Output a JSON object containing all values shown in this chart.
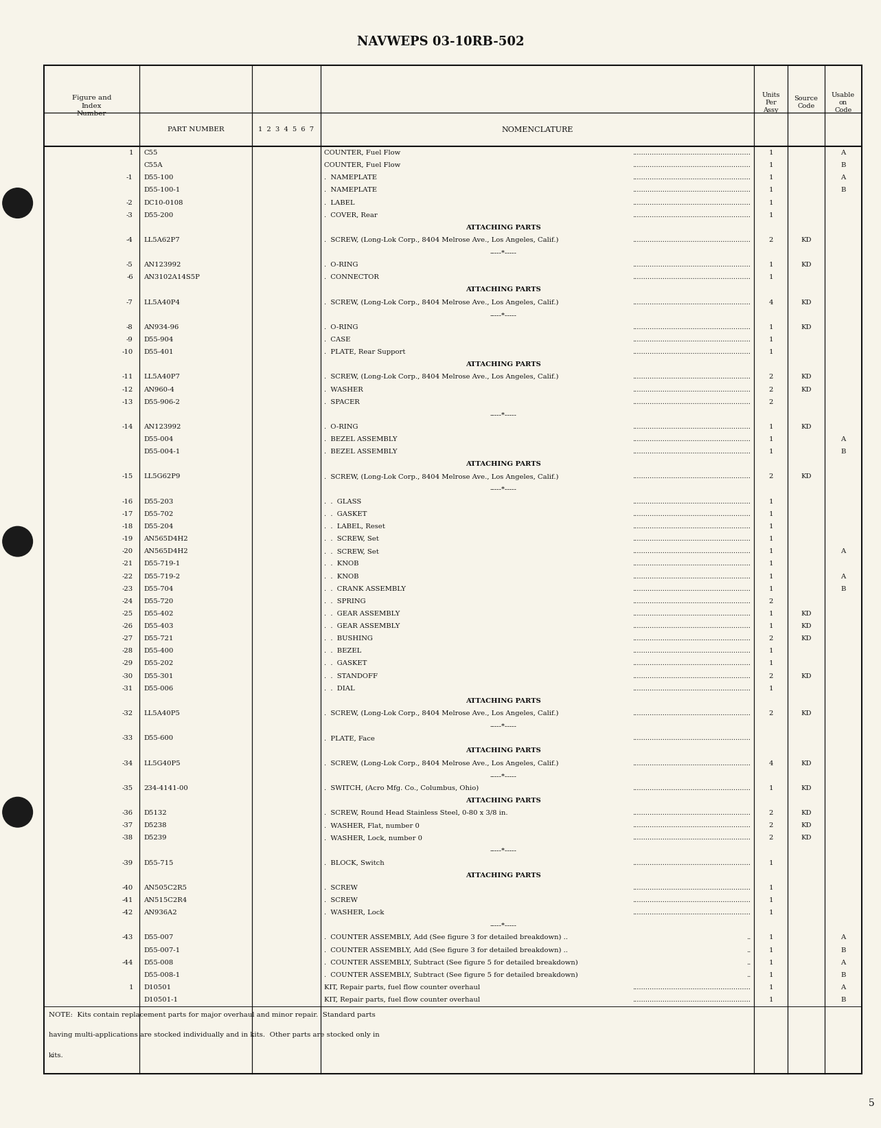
{
  "title": "NAVWEPS 03-10RB-502",
  "page_number": "5",
  "bg_color": "#f7f4ea",
  "rows": [
    {
      "fig": "1",
      "part": "C55",
      "indent": 0,
      "nom": "COUNTER, Fuel Flow",
      "units": "1",
      "source": "",
      "usable": "A",
      "type": "data"
    },
    {
      "fig": "",
      "part": "C55A",
      "indent": 0,
      "nom": "COUNTER, Fuel Flow",
      "units": "1",
      "source": "",
      "usable": "B",
      "type": "data"
    },
    {
      "fig": "-1",
      "part": "D55-100",
      "indent": 1,
      "nom": "NAMEPLATE",
      "units": "1",
      "source": "",
      "usable": "A",
      "type": "data"
    },
    {
      "fig": "",
      "part": "D55-100-1",
      "indent": 1,
      "nom": "NAMEPLATE",
      "units": "1",
      "source": "",
      "usable": "B",
      "type": "data"
    },
    {
      "fig": "-2",
      "part": "DC10-0108",
      "indent": 1,
      "nom": "LABEL",
      "units": "1",
      "source": "",
      "usable": "",
      "type": "data"
    },
    {
      "fig": "-3",
      "part": "D55-200",
      "indent": 1,
      "nom": "COVER, Rear",
      "units": "1",
      "source": "",
      "usable": "",
      "type": "data"
    },
    {
      "fig": "",
      "part": "",
      "indent": 0,
      "nom": "ATTACHING PARTS",
      "units": "",
      "source": "",
      "usable": "",
      "type": "attaching"
    },
    {
      "fig": "-4",
      "part": "LL5A62P7",
      "indent": 1,
      "nom": "SCREW, (Long-Lok Corp., 8404 Melrose Ave., Los Angeles, Calif.)",
      "units": "2",
      "source": "KD",
      "usable": "",
      "type": "data"
    },
    {
      "fig": "",
      "part": "",
      "indent": 0,
      "nom": "",
      "units": "",
      "source": "",
      "usable": "",
      "type": "separator"
    },
    {
      "fig": "-5",
      "part": "AN123992",
      "indent": 1,
      "nom": "O-RING",
      "units": "1",
      "source": "KD",
      "usable": "",
      "type": "data"
    },
    {
      "fig": "-6",
      "part": "AN3102A14S5P",
      "indent": 1,
      "nom": "CONNECTOR",
      "units": "1",
      "source": "",
      "usable": "",
      "type": "data"
    },
    {
      "fig": "",
      "part": "",
      "indent": 0,
      "nom": "ATTACHING PARTS",
      "units": "",
      "source": "",
      "usable": "",
      "type": "attaching"
    },
    {
      "fig": "-7",
      "part": "LL5A40P4",
      "indent": 1,
      "nom": "SCREW, (Long-Lok Corp., 8404 Melrose Ave., Los Angeles, Calif.)",
      "units": "4",
      "source": "KD",
      "usable": "",
      "type": "data"
    },
    {
      "fig": "",
      "part": "",
      "indent": 0,
      "nom": "",
      "units": "",
      "source": "",
      "usable": "",
      "type": "separator"
    },
    {
      "fig": "-8",
      "part": "AN934-96",
      "indent": 1,
      "nom": "O-RING",
      "units": "1",
      "source": "KD",
      "usable": "",
      "type": "data"
    },
    {
      "fig": "-9",
      "part": "D55-904",
      "indent": 1,
      "nom": "CASE",
      "units": "1",
      "source": "",
      "usable": "",
      "type": "data"
    },
    {
      "fig": "-10",
      "part": "D55-401",
      "indent": 1,
      "nom": "PLATE, Rear Support",
      "units": "1",
      "source": "",
      "usable": "",
      "type": "data"
    },
    {
      "fig": "",
      "part": "",
      "indent": 0,
      "nom": "ATTACHING PARTS",
      "units": "",
      "source": "",
      "usable": "",
      "type": "attaching"
    },
    {
      "fig": "-11",
      "part": "LL5A40P7",
      "indent": 1,
      "nom": "SCREW, (Long-Lok Corp., 8404 Melrose Ave., Los Angeles, Calif.)",
      "units": "2",
      "source": "KD",
      "usable": "",
      "type": "data"
    },
    {
      "fig": "-12",
      "part": "AN960-4",
      "indent": 1,
      "nom": "WASHER",
      "units": "2",
      "source": "KD",
      "usable": "",
      "type": "data"
    },
    {
      "fig": "-13",
      "part": "D55-906-2",
      "indent": 1,
      "nom": "SPACER",
      "units": "2",
      "source": "",
      "usable": "",
      "type": "data"
    },
    {
      "fig": "",
      "part": "",
      "indent": 0,
      "nom": "",
      "units": "",
      "source": "",
      "usable": "",
      "type": "separator"
    },
    {
      "fig": "-14",
      "part": "AN123992",
      "indent": 1,
      "nom": "O-RING",
      "units": "1",
      "source": "KD",
      "usable": "",
      "type": "data"
    },
    {
      "fig": "",
      "part": "D55-004",
      "indent": 1,
      "nom": "BEZEL ASSEMBLY",
      "units": "1",
      "source": "",
      "usable": "A",
      "type": "data"
    },
    {
      "fig": "",
      "part": "D55-004-1",
      "indent": 1,
      "nom": "BEZEL ASSEMBLY",
      "units": "1",
      "source": "",
      "usable": "B",
      "type": "data"
    },
    {
      "fig": "",
      "part": "",
      "indent": 0,
      "nom": "ATTACHING PARTS",
      "units": "",
      "source": "",
      "usable": "",
      "type": "attaching"
    },
    {
      "fig": "-15",
      "part": "LL5G62P9",
      "indent": 1,
      "nom": "SCREW, (Long-Lok Corp., 8404 Melrose Ave., Los Angeles, Calif.)",
      "units": "2",
      "source": "KD",
      "usable": "",
      "type": "data"
    },
    {
      "fig": "",
      "part": "",
      "indent": 0,
      "nom": "",
      "units": "",
      "source": "",
      "usable": "",
      "type": "separator"
    },
    {
      "fig": "-16",
      "part": "D55-203",
      "indent": 2,
      "nom": "GLASS",
      "units": "1",
      "source": "",
      "usable": "",
      "type": "data"
    },
    {
      "fig": "-17",
      "part": "D55-702",
      "indent": 2,
      "nom": "GASKET",
      "units": "1",
      "source": "",
      "usable": "",
      "type": "data"
    },
    {
      "fig": "-18",
      "part": "D55-204",
      "indent": 2,
      "nom": "LABEL, Reset",
      "units": "1",
      "source": "",
      "usable": "",
      "type": "data"
    },
    {
      "fig": "-19",
      "part": "AN565D4H2",
      "indent": 2,
      "nom": "SCREW, Set",
      "units": "1",
      "source": "",
      "usable": "",
      "type": "data"
    },
    {
      "fig": "-20",
      "part": "AN565D4H2",
      "indent": 2,
      "nom": "SCREW, Set",
      "units": "1",
      "source": "",
      "usable": "A",
      "type": "data"
    },
    {
      "fig": "-21",
      "part": "D55-719-1",
      "indent": 2,
      "nom": "KNOB",
      "units": "1",
      "source": "",
      "usable": "",
      "type": "data"
    },
    {
      "fig": "-22",
      "part": "D55-719-2",
      "indent": 2,
      "nom": "KNOB",
      "units": "1",
      "source": "",
      "usable": "A",
      "type": "data"
    },
    {
      "fig": "-23",
      "part": "D55-704",
      "indent": 2,
      "nom": "CRANK ASSEMBLY",
      "units": "1",
      "source": "",
      "usable": "B",
      "type": "data"
    },
    {
      "fig": "-24",
      "part": "D55-720",
      "indent": 2,
      "nom": "SPRING",
      "units": "2",
      "source": "",
      "usable": "",
      "type": "data"
    },
    {
      "fig": "-25",
      "part": "D55-402",
      "indent": 2,
      "nom": "GEAR ASSEMBLY",
      "units": "1",
      "source": "KD",
      "usable": "",
      "type": "data"
    },
    {
      "fig": "-26",
      "part": "D55-403",
      "indent": 2,
      "nom": "GEAR ASSEMBLY",
      "units": "1",
      "source": "KD",
      "usable": "",
      "type": "data"
    },
    {
      "fig": "-27",
      "part": "D55-721",
      "indent": 2,
      "nom": "BUSHING",
      "units": "2",
      "source": "KD",
      "usable": "",
      "type": "data"
    },
    {
      "fig": "-28",
      "part": "D55-400",
      "indent": 2,
      "nom": "BEZEL",
      "units": "1",
      "source": "",
      "usable": "",
      "type": "data"
    },
    {
      "fig": "-29",
      "part": "D55-202",
      "indent": 2,
      "nom": "GASKET",
      "units": "1",
      "source": "",
      "usable": "",
      "type": "data"
    },
    {
      "fig": "-30",
      "part": "D55-301",
      "indent": 2,
      "nom": "STANDOFF",
      "units": "2",
      "source": "KD",
      "usable": "",
      "type": "data"
    },
    {
      "fig": "-31",
      "part": "D55-006",
      "indent": 2,
      "nom": "DIAL",
      "units": "1",
      "source": "",
      "usable": "",
      "type": "data"
    },
    {
      "fig": "",
      "part": "",
      "indent": 0,
      "nom": "ATTACHING PARTS",
      "units": "",
      "source": "",
      "usable": "",
      "type": "attaching"
    },
    {
      "fig": "-32",
      "part": "LL5A40P5",
      "indent": 1,
      "nom": "SCREW, (Long-Lok Corp., 8404 Melrose Ave., Los Angeles, Calif.)",
      "units": "2",
      "source": "KD",
      "usable": "",
      "type": "data"
    },
    {
      "fig": "",
      "part": "",
      "indent": 0,
      "nom": "",
      "units": "",
      "source": "",
      "usable": "",
      "type": "separator"
    },
    {
      "fig": "-33",
      "part": "D55-600",
      "indent": 1,
      "nom": "PLATE, Face",
      "units": "",
      "source": "",
      "usable": "",
      "type": "data"
    },
    {
      "fig": "",
      "part": "",
      "indent": 0,
      "nom": "ATTACHING PARTS",
      "units": "",
      "source": "",
      "usable": "",
      "type": "attaching"
    },
    {
      "fig": "-34",
      "part": "LL5G40P5",
      "indent": 1,
      "nom": "SCREW, (Long-Lok Corp., 8404 Melrose Ave., Los Angeles, Calif.)",
      "units": "4",
      "source": "KD",
      "usable": "",
      "type": "data"
    },
    {
      "fig": "",
      "part": "",
      "indent": 0,
      "nom": "",
      "units": "",
      "source": "",
      "usable": "",
      "type": "separator"
    },
    {
      "fig": "-35",
      "part": "234-4141-00",
      "indent": 1,
      "nom": "SWITCH, (Acro Mfg. Co., Columbus, Ohio)",
      "units": "1",
      "source": "KD",
      "usable": "",
      "type": "data"
    },
    {
      "fig": "",
      "part": "",
      "indent": 0,
      "nom": "ATTACHING PARTS",
      "units": "",
      "source": "",
      "usable": "",
      "type": "attaching"
    },
    {
      "fig": "-36",
      "part": "D5132",
      "indent": 1,
      "nom": "SCREW, Round Head Stainless Steel, 0-80 x 3/8 in.",
      "units": "2",
      "source": "KD",
      "usable": "",
      "type": "data"
    },
    {
      "fig": "-37",
      "part": "D5238",
      "indent": 1,
      "nom": "WASHER, Flat, number 0",
      "units": "2",
      "source": "KD",
      "usable": "",
      "type": "data"
    },
    {
      "fig": "-38",
      "part": "D5239",
      "indent": 1,
      "nom": "WASHER, Lock, number 0",
      "units": "2",
      "source": "KD",
      "usable": "",
      "type": "data"
    },
    {
      "fig": "",
      "part": "",
      "indent": 0,
      "nom": "",
      "units": "",
      "source": "",
      "usable": "",
      "type": "separator"
    },
    {
      "fig": "-39",
      "part": "D55-715",
      "indent": 1,
      "nom": "BLOCK, Switch",
      "units": "1",
      "source": "",
      "usable": "",
      "type": "data"
    },
    {
      "fig": "",
      "part": "",
      "indent": 0,
      "nom": "ATTACHING PARTS",
      "units": "",
      "source": "",
      "usable": "",
      "type": "attaching"
    },
    {
      "fig": "-40",
      "part": "AN505C2R5",
      "indent": 1,
      "nom": "SCREW",
      "units": "1",
      "source": "",
      "usable": "",
      "type": "data"
    },
    {
      "fig": "-41",
      "part": "AN515C2R4",
      "indent": 1,
      "nom": "SCREW",
      "units": "1",
      "source": "",
      "usable": "",
      "type": "data"
    },
    {
      "fig": "-42",
      "part": "AN936A2",
      "indent": 1,
      "nom": "WASHER, Lock",
      "units": "1",
      "source": "",
      "usable": "",
      "type": "data"
    },
    {
      "fig": "",
      "part": "",
      "indent": 0,
      "nom": "",
      "units": "",
      "source": "",
      "usable": "",
      "type": "separator"
    },
    {
      "fig": "-43",
      "part": "D55-007",
      "indent": 1,
      "nom": "COUNTER ASSEMBLY, Add (See figure 3 for detailed breakdown) ..",
      "units": "1",
      "source": "",
      "usable": "A",
      "type": "data_nodots"
    },
    {
      "fig": "",
      "part": "D55-007-1",
      "indent": 1,
      "nom": "COUNTER ASSEMBLY, Add (See figure 3 for detailed breakdown) ..",
      "units": "1",
      "source": "",
      "usable": "B",
      "type": "data_nodots"
    },
    {
      "fig": "-44",
      "part": "D55-008",
      "indent": 1,
      "nom": "COUNTER ASSEMBLY, Subtract (See figure 5 for detailed breakdown)",
      "units": "1",
      "source": "",
      "usable": "A",
      "type": "data_nodots"
    },
    {
      "fig": "",
      "part": "D55-008-1",
      "indent": 1,
      "nom": "COUNTER ASSEMBLY, Subtract (See figure 5 for detailed breakdown)",
      "units": "1",
      "source": "",
      "usable": "B",
      "type": "data_nodots"
    },
    {
      "fig": "1",
      "part": "D10501",
      "indent": 0,
      "nom": "KIT, Repair parts, fuel flow counter overhaul",
      "units": "1",
      "source": "",
      "usable": "A",
      "type": "data"
    },
    {
      "fig": "",
      "part": "D10501-1",
      "indent": 0,
      "nom": "KIT, Repair parts, fuel flow counter overhaul",
      "units": "1",
      "source": "",
      "usable": "B",
      "type": "data"
    }
  ],
  "footnote_line1": "NOTE:  Kits contain replacement parts for major overhaul and minor repair.  Standard parts",
  "footnote_line2": "having multi-applications are stocked individually and in kits.  Other parts are stocked only in",
  "footnote_line3": "kits."
}
